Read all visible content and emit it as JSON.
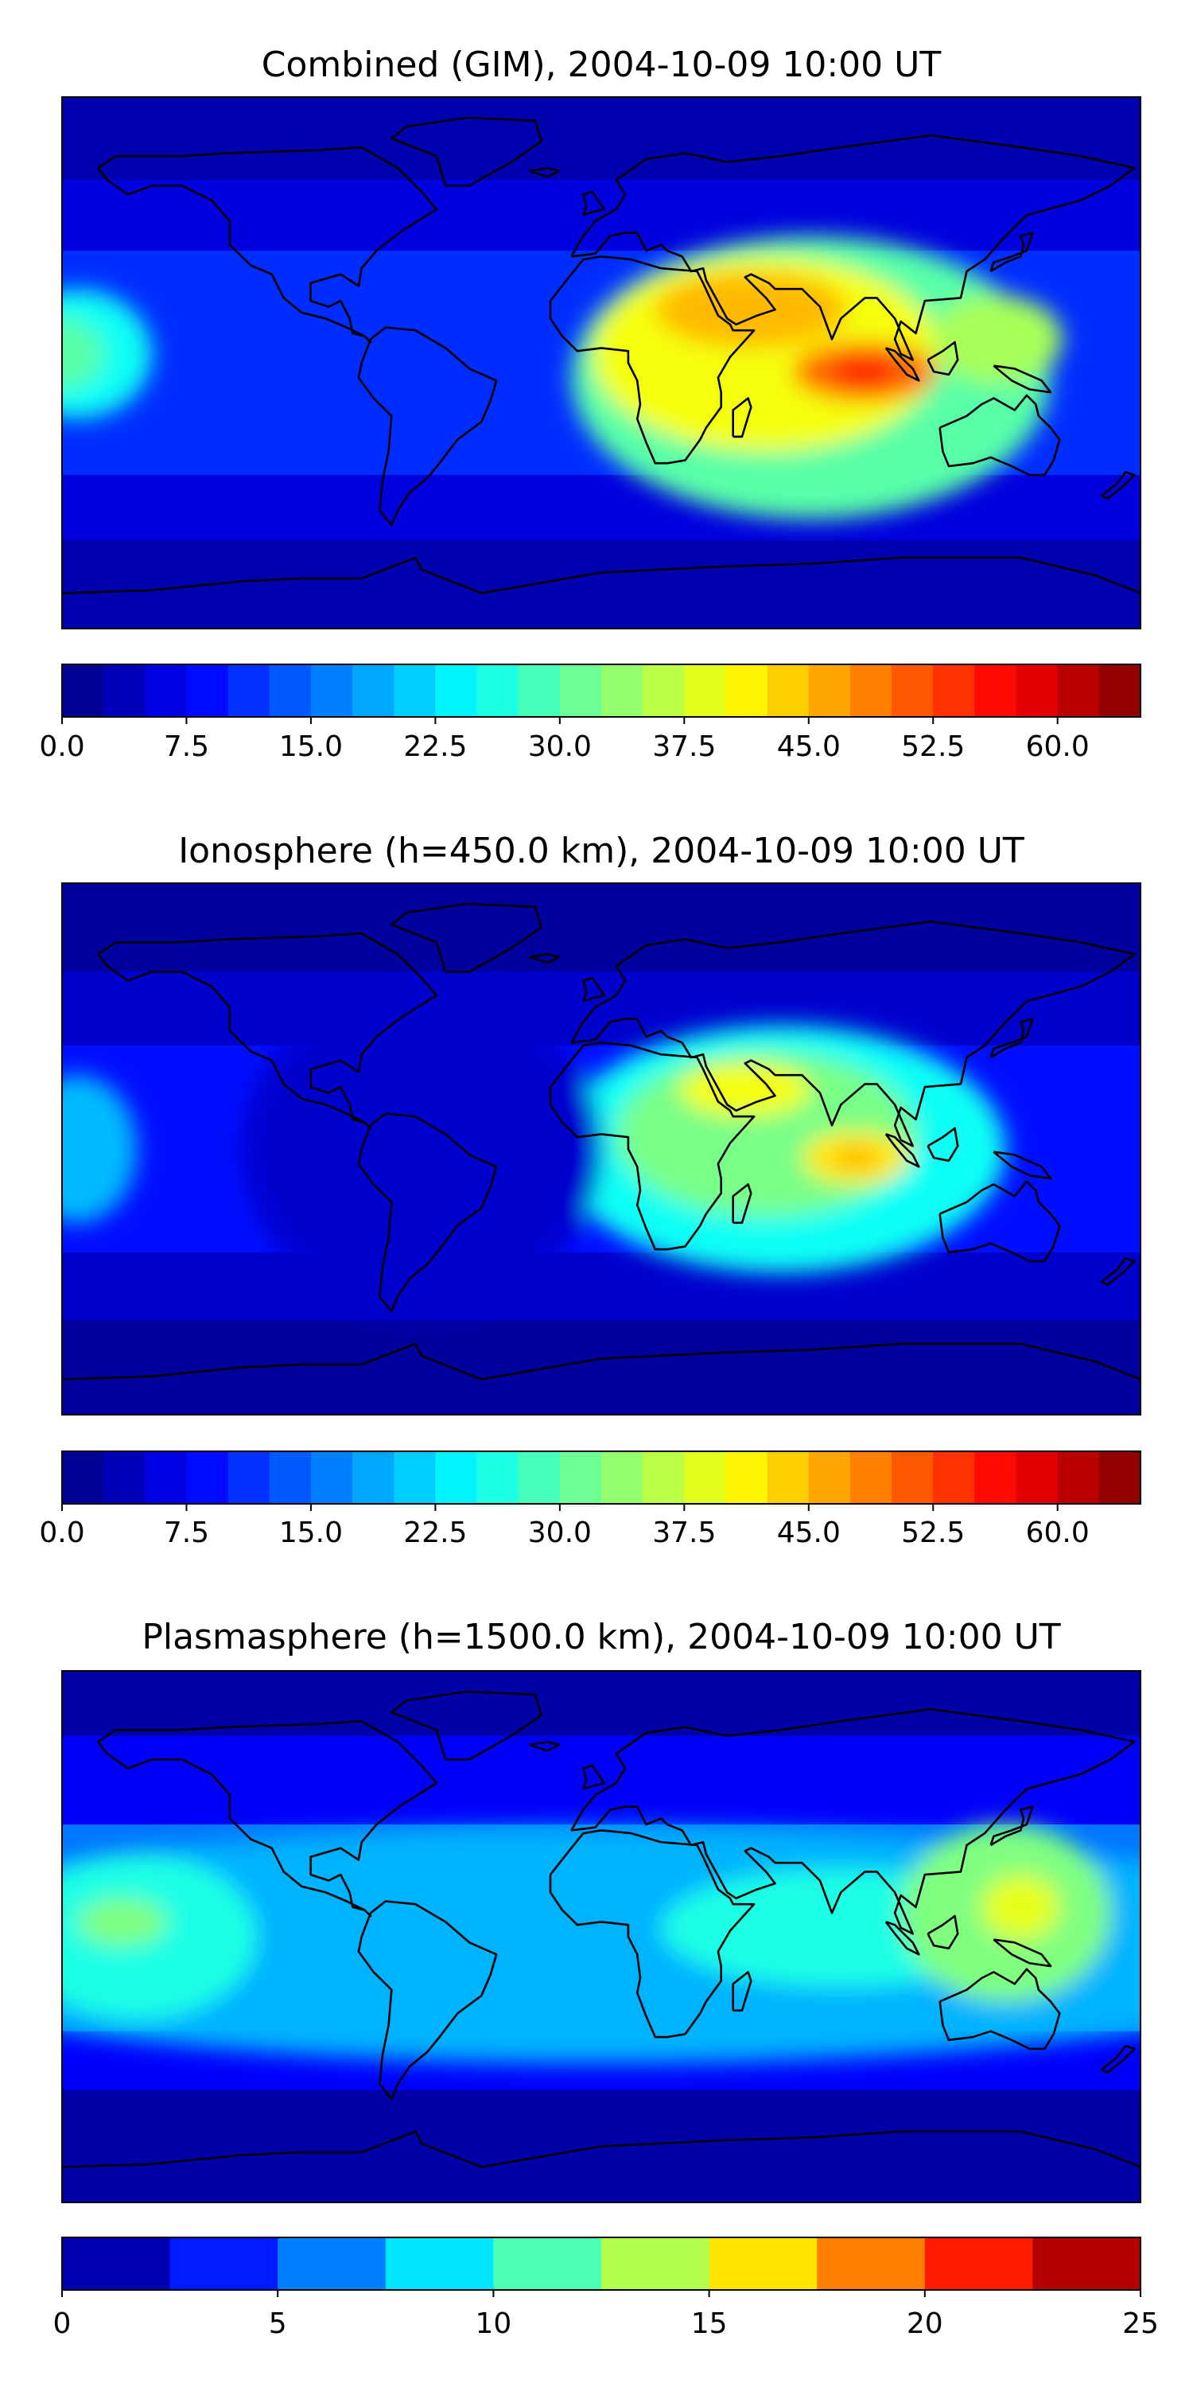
{
  "panels": [
    {
      "id": "combined",
      "title": "Combined (GIM), 2004-10-09 10:00 UT",
      "colorbar": {
        "ticks": [
          "0.0",
          "7.5",
          "15.0",
          "22.5",
          "30.0",
          "37.5",
          "45.0",
          "52.5",
          "60.0"
        ],
        "min": 0,
        "max": 65,
        "step": 2.5
      },
      "blobs": [
        {
          "lon": 70,
          "lat": -5,
          "rx": 80,
          "ry": 48,
          "value": 30
        },
        {
          "lon": 55,
          "lat": 3,
          "rx": 58,
          "ry": 33,
          "value": 40
        },
        {
          "lon": 50,
          "lat": 18,
          "rx": 32,
          "ry": 13,
          "value": 45
        },
        {
          "lon": 88,
          "lat": -3,
          "rx": 24,
          "ry": 10,
          "value": 50
        },
        {
          "lon": 88,
          "lat": -3,
          "rx": 11,
          "ry": 5,
          "value": 55
        },
        {
          "lon": 132,
          "lat": 8,
          "rx": 22,
          "ry": 15,
          "value": 35
        },
        {
          "lon": -175,
          "lat": 3,
          "rx": 25,
          "ry": 22,
          "value": 25
        },
        {
          "lon": -180,
          "lat": 3,
          "rx": 14,
          "ry": 12,
          "value": 30
        }
      ]
    },
    {
      "id": "ionosphere",
      "title": "Ionosphere  (h=450.0 km), 2004-10-09 10:00 UT",
      "colorbar": {
        "ticks": [
          "0.0",
          "7.5",
          "15.0",
          "22.5",
          "30.0",
          "37.5",
          "45.0",
          "52.5",
          "60.0"
        ],
        "min": 0,
        "max": 65,
        "step": 2.5
      },
      "blobs": [
        {
          "lon": 60,
          "lat": 0,
          "rx": 75,
          "ry": 42,
          "value": 25
        },
        {
          "lon": 55,
          "lat": 5,
          "rx": 50,
          "ry": 28,
          "value": 32
        },
        {
          "lon": 48,
          "lat": 20,
          "rx": 22,
          "ry": 9,
          "value": 40
        },
        {
          "lon": 85,
          "lat": -3,
          "rx": 18,
          "ry": 9,
          "value": 42
        },
        {
          "lon": 85,
          "lat": -3,
          "rx": 8,
          "ry": 4,
          "value": 45
        },
        {
          "lon": -60,
          "lat": 0,
          "rx": 60,
          "ry": 55,
          "value": 5
        },
        {
          "lon": -175,
          "lat": 0,
          "rx": 20,
          "ry": 25,
          "value": 20
        }
      ]
    },
    {
      "id": "plasmasphere",
      "title": "Plasmasphere (h=1500.0 km), 2004-10-09 10:00 UT",
      "colorbar": {
        "ticks": [
          "0",
          "5",
          "10",
          "15",
          "20",
          "25"
        ],
        "min": 0,
        "max": 25,
        "step": 2.5
      },
      "blobs": [
        {
          "lon": 0,
          "lat": -3,
          "rx": 260,
          "ry": 40,
          "value": 7.5
        },
        {
          "lon": -155,
          "lat": 0,
          "rx": 40,
          "ry": 28,
          "value": 10
        },
        {
          "lon": -160,
          "lat": 5,
          "rx": 15,
          "ry": 8,
          "value": 12.5
        },
        {
          "lon": 80,
          "lat": 3,
          "rx": 60,
          "ry": 20,
          "value": 10
        },
        {
          "lon": 135,
          "lat": 8,
          "rx": 35,
          "ry": 30,
          "value": 12.5
        },
        {
          "lon": 140,
          "lat": 10,
          "rx": 13,
          "ry": 11,
          "value": 15
        }
      ]
    }
  ],
  "colors": {
    "map_background_deep": "#00008f",
    "coastline": "#000000"
  }
}
